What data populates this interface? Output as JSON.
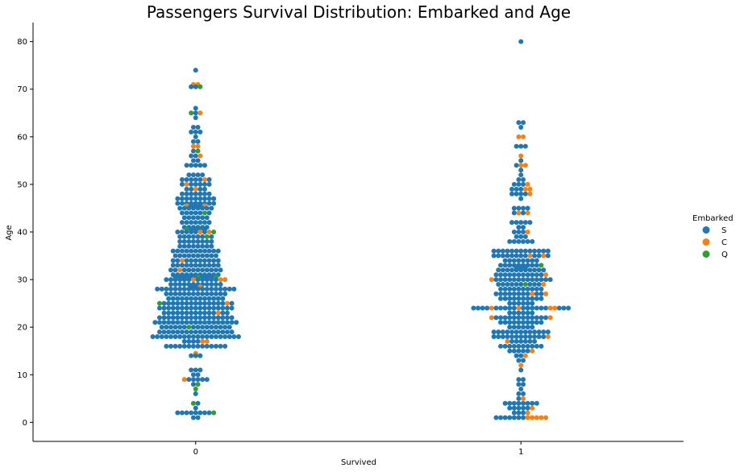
{
  "chart_data": {
    "type": "scatter",
    "subtype": "swarm",
    "title": "Passengers Survival Distribution: Embarked and Age",
    "xlabel": "Survived",
    "ylabel": "Age",
    "categories": [
      "0",
      "1"
    ],
    "ylim": [
      -4,
      84
    ],
    "yticks": [
      "0",
      "10",
      "20",
      "30",
      "40",
      "50",
      "60",
      "70",
      "80"
    ],
    "grid": false,
    "legend": {
      "title": "Embarked",
      "placement": "right",
      "entries": [
        {
          "name": "S",
          "color": "#1f77b4"
        },
        {
          "name": "C",
          "color": "#ff7f0e"
        },
        {
          "name": "Q",
          "color": "#2ca02c"
        }
      ]
    },
    "series": [
      {
        "name": "0",
        "rows": [
          {
            "age": 74,
            "pts": "S"
          },
          {
            "age": 71,
            "pts": "CC"
          },
          {
            "age": 70.5,
            "pts": "SSQ"
          },
          {
            "age": 66,
            "pts": "S"
          },
          {
            "age": 65,
            "pts": "QSC"
          },
          {
            "age": 64,
            "pts": "S"
          },
          {
            "age": 62,
            "pts": "SS"
          },
          {
            "age": 61,
            "pts": "SSS"
          },
          {
            "age": 60,
            "pts": "S"
          },
          {
            "age": 59,
            "pts": "SS"
          },
          {
            "age": 58,
            "pts": "CC"
          },
          {
            "age": 57,
            "pts": "SQ"
          },
          {
            "age": 56,
            "pts": "SSC"
          },
          {
            "age": 55,
            "pts": "SS"
          },
          {
            "age": 54,
            "pts": "SSSSS"
          },
          {
            "age": 52,
            "pts": "SSSS"
          },
          {
            "age": 51,
            "pts": "SSSSSCS"
          },
          {
            "age": 50,
            "pts": "SCSSSSS"
          },
          {
            "age": 49,
            "pts": "SSCSS"
          },
          {
            "age": 48,
            "pts": "SSSSSSS"
          },
          {
            "age": 47,
            "pts": "SSSSSSSSS"
          },
          {
            "age": 46,
            "pts": "SSSSSSSSS"
          },
          {
            "age": 45.5,
            "pts": "CSSSC"
          },
          {
            "age": 45,
            "pts": "SSSSSSSS"
          },
          {
            "age": 44,
            "pts": "SSSSSQS"
          },
          {
            "age": 43,
            "pts": "SSSSSS"
          },
          {
            "age": 42,
            "pts": "SSSSSSS"
          },
          {
            "age": 41,
            "pts": "SSSSSS"
          },
          {
            "age": 40.5,
            "pts": "QSSSS"
          },
          {
            "age": 40,
            "pts": "SSSSSCSCQ"
          },
          {
            "age": 39,
            "pts": "SSSSSSQS"
          },
          {
            "age": 38,
            "pts": "SSSSSSSS"
          },
          {
            "age": 37,
            "pts": "SSSSSSSS"
          },
          {
            "age": 36,
            "pts": "SSSSSSSSSSS"
          },
          {
            "age": 35,
            "pts": "SSSSSSSSSS"
          },
          {
            "age": 34,
            "pts": "SSCSSSSSSSS"
          },
          {
            "age": 33,
            "pts": "SSSSSSSSSSS"
          },
          {
            "age": 32,
            "pts": "SSCSSSSSSSSS"
          },
          {
            "age": 31,
            "pts": "SSSSSSSSSSS"
          },
          {
            "age": 30.5,
            "pts": "SSSSSQSSSQ"
          },
          {
            "age": 30,
            "pts": "SSSSSSCSSSSSCC"
          },
          {
            "age": 29,
            "pts": "SSSSSSSSSSSS"
          },
          {
            "age": 28.5,
            "pts": "SSC"
          },
          {
            "age": 28,
            "pts": "SSSSSSSSSSSSSSSSSS"
          },
          {
            "age": 27,
            "pts": "SSSSSSSSSSSSSS"
          },
          {
            "age": 26,
            "pts": "SSSSSSSSSSSSS"
          },
          {
            "age": 25,
            "pts": "QSSSSSSSSSSSSSSCS"
          },
          {
            "age": 24,
            "pts": "SSSSSSSSSSSSSSSSS"
          },
          {
            "age": 23,
            "pts": "SSSSSSSSSSSSCSS"
          },
          {
            "age": 22,
            "pts": "SSSSSSSSSSSSSSSSS"
          },
          {
            "age": 21,
            "pts": "SSSSSSSSSSSSSSSSSSS"
          },
          {
            "age": 20,
            "pts": "SSSSSSQSSSSSSSSS"
          },
          {
            "age": 19,
            "pts": "SSSSSSSSSSSSSSSSS"
          },
          {
            "age": 18,
            "pts": "SSSSSSSSSSSSSSSSSSSS"
          },
          {
            "age": 17,
            "pts": "SSSSCC"
          },
          {
            "age": 16,
            "pts": "SSSSSSSSSSSSSS"
          },
          {
            "age": 14.5,
            "pts": "C"
          },
          {
            "age": 14,
            "pts": "SSS"
          },
          {
            "age": 11,
            "pts": "SSS"
          },
          {
            "age": 10,
            "pts": "SS"
          },
          {
            "age": 9,
            "pts": "CSSSSS"
          },
          {
            "age": 8,
            "pts": "SQ"
          },
          {
            "age": 7,
            "pts": "Q"
          },
          {
            "age": 6,
            "pts": "S"
          },
          {
            "age": 4,
            "pts": "QS"
          },
          {
            "age": 3,
            "pts": "S"
          },
          {
            "age": 2,
            "pts": "SSSSSSSSQ"
          },
          {
            "age": 1,
            "pts": "SS"
          }
        ]
      },
      {
        "name": "1",
        "rows": [
          {
            "age": 80,
            "pts": "S"
          },
          {
            "age": 63,
            "pts": "SS"
          },
          {
            "age": 62,
            "pts": "S"
          },
          {
            "age": 60,
            "pts": "CC"
          },
          {
            "age": 58,
            "pts": "SSS"
          },
          {
            "age": 56,
            "pts": "C"
          },
          {
            "age": 55,
            "pts": "S"
          },
          {
            "age": 54,
            "pts": "SCC"
          },
          {
            "age": 53,
            "pts": "S"
          },
          {
            "age": 52,
            "pts": "S"
          },
          {
            "age": 51,
            "pts": "SS"
          },
          {
            "age": 50,
            "pts": "SSSC"
          },
          {
            "age": 49,
            "pts": "SSSCC"
          },
          {
            "age": 48,
            "pts": "SSSSC"
          },
          {
            "age": 47,
            "pts": "S"
          },
          {
            "age": 45,
            "pts": "SSSS"
          },
          {
            "age": 44,
            "pts": "SCSC"
          },
          {
            "age": 42,
            "pts": "SSSSS"
          },
          {
            "age": 41,
            "pts": "SS"
          },
          {
            "age": 40,
            "pts": "SSSC"
          },
          {
            "age": 39,
            "pts": "SSS"
          },
          {
            "age": 38,
            "pts": "SSSSSS"
          },
          {
            "age": 36,
            "pts": "SSSSSSSSSSSSS"
          },
          {
            "age": 35,
            "pts": "SSSSSSSSCSSCS"
          },
          {
            "age": 34,
            "pts": "SSSSSSSS"
          },
          {
            "age": 33,
            "pts": "SSSSSSSSSQ"
          },
          {
            "age": 32.5,
            "pts": "SSS"
          },
          {
            "age": 32,
            "pts": "SSSSSSSSSSS"
          },
          {
            "age": 31,
            "pts": "SSSSSSSSSSSC"
          },
          {
            "age": 30,
            "pts": "CSSSSSSSSSSSSS"
          },
          {
            "age": 29,
            "pts": "SSSSSSQSSSC"
          },
          {
            "age": 28,
            "pts": "SSSSSSSSSS"
          },
          {
            "age": 27,
            "pts": "SSSSSSSSCSSC"
          },
          {
            "age": 26,
            "pts": "SSSSSSSSSS"
          },
          {
            "age": 25,
            "pts": "SSSSSS"
          },
          {
            "age": 24,
            "pts": "SSSSCSSSSSCSSSSSSCCSSS"
          },
          {
            "age": 23,
            "pts": "SSSSSS"
          },
          {
            "age": 22,
            "pts": "CSSSSSSSSSSSSC"
          },
          {
            "age": 21,
            "pts": "SSSSSSSSSS"
          },
          {
            "age": 20,
            "pts": "SSSSSS"
          },
          {
            "age": 19,
            "pts": "SSSSSSSSSSSSS"
          },
          {
            "age": 18,
            "pts": "SSSSSSSSSSSSC"
          },
          {
            "age": 17,
            "pts": "CSSSSSS"
          },
          {
            "age": 16,
            "pts": "SSSSSSSSSS"
          },
          {
            "age": 15,
            "pts": "SSSSSC"
          },
          {
            "age": 14,
            "pts": "SSC"
          },
          {
            "age": 13,
            "pts": "SS"
          },
          {
            "age": 12,
            "pts": "C"
          },
          {
            "age": 11,
            "pts": "S"
          },
          {
            "age": 9,
            "pts": "SS"
          },
          {
            "age": 8,
            "pts": "SS"
          },
          {
            "age": 7,
            "pts": "S"
          },
          {
            "age": 6,
            "pts": "SS"
          },
          {
            "age": 5,
            "pts": "SC"
          },
          {
            "age": 4,
            "pts": "SSSSSSSS"
          },
          {
            "age": 3,
            "pts": "SSSSSC"
          },
          {
            "age": 2,
            "pts": "SSSC"
          },
          {
            "age": 1,
            "pts": "SSSSSSSCCCCC"
          }
        ]
      }
    ]
  }
}
